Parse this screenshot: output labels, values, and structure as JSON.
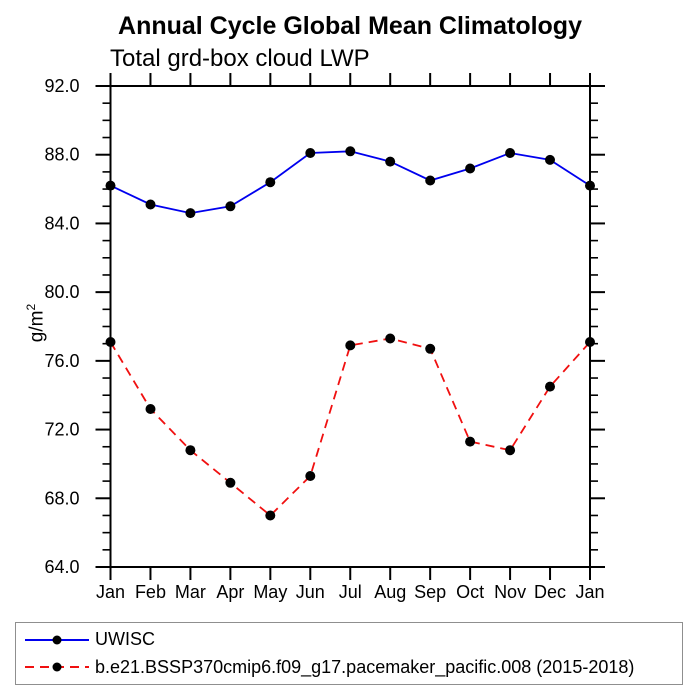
{
  "title": "Annual Cycle Global Mean Climatology",
  "subtitle": "Total grd-box cloud LWP",
  "ylabel": {
    "base": "g/m",
    "sup": "2"
  },
  "chart_data": {
    "type": "line",
    "categories": [
      "Jan",
      "Feb",
      "Mar",
      "Apr",
      "May",
      "Jun",
      "Jul",
      "Aug",
      "Sep",
      "Oct",
      "Nov",
      "Dec",
      "Jan"
    ],
    "series": [
      {
        "name": "UWISC",
        "color": "#0000ee",
        "line_style": "solid",
        "marker": "circle",
        "marker_color": "#000000",
        "values": [
          86.2,
          85.1,
          84.6,
          85.0,
          86.4,
          88.1,
          88.2,
          87.6,
          86.5,
          87.2,
          88.1,
          87.7,
          86.2
        ]
      },
      {
        "name": "b.e21.BSSP370cmip6.f09_g17.pacemaker_pacific.008 (2015-2018)",
        "color": "#f01010",
        "line_style": "dashed",
        "marker": "circle",
        "marker_color": "#000000",
        "values": [
          77.1,
          73.2,
          70.8,
          68.9,
          67.0,
          69.3,
          76.9,
          77.3,
          76.7,
          71.3,
          70.8,
          74.5,
          77.1
        ]
      }
    ],
    "ylim": [
      64.0,
      92.0
    ],
    "ytick_values": [
      64,
      68,
      72,
      76,
      80,
      84,
      88,
      92
    ],
    "ytick_labels": [
      "64.0",
      "68.0",
      "72.0",
      "76.0",
      "80.0",
      "84.0",
      "88.0",
      "92.0"
    ],
    "yminor_step": 1.0,
    "xlabel": "",
    "ylabel_text": "g/m2",
    "grid": false,
    "legend_position": "bottom"
  },
  "colors": {
    "axis": "#000000",
    "text": "#000000",
    "legend_border": "#8f8f8f",
    "background": "#ffffff"
  }
}
